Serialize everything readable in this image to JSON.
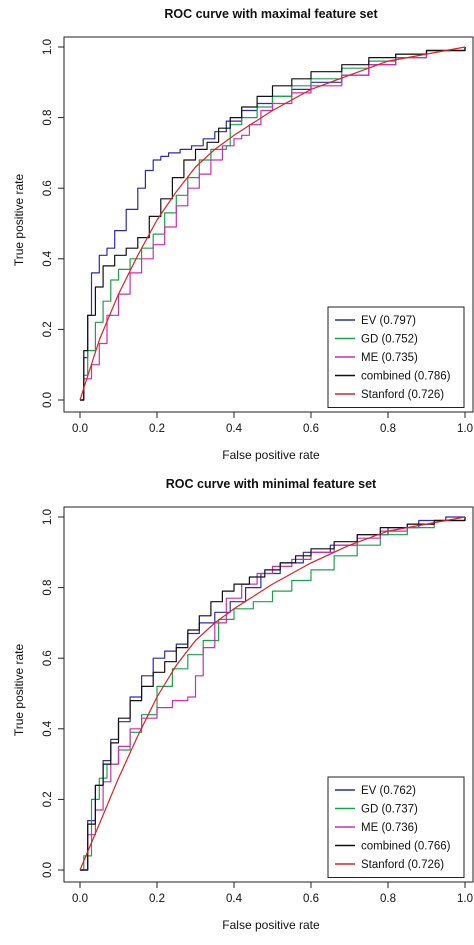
{
  "chart_data": [
    {
      "type": "line",
      "title": "ROC curve with maximal feature set",
      "xlabel": "False positive rate",
      "ylabel": "True positive rate",
      "xlim": [
        0,
        1
      ],
      "ylim": [
        0,
        1
      ],
      "xticks": [
        "0.0",
        "0.2",
        "0.4",
        "0.6",
        "0.8",
        "1.0"
      ],
      "yticks": [
        "0.0",
        "0.2",
        "0.4",
        "0.6",
        "0.8",
        "1.0"
      ],
      "grid": false,
      "legend_position": "bottom-right",
      "series": [
        {
          "name": "EV (0.797)",
          "color": "#2b2bb0",
          "x": [
            0,
            0.01,
            0.02,
            0.03,
            0.05,
            0.07,
            0.09,
            0.12,
            0.15,
            0.17,
            0.19,
            0.21,
            0.23,
            0.26,
            0.29,
            0.32,
            0.35,
            0.38,
            0.42,
            0.46,
            0.5,
            0.55,
            0.6,
            0.68,
            0.75,
            0.82,
            0.9,
            1.0
          ],
          "y": [
            0,
            0.12,
            0.24,
            0.36,
            0.41,
            0.43,
            0.48,
            0.54,
            0.6,
            0.65,
            0.68,
            0.69,
            0.7,
            0.71,
            0.72,
            0.74,
            0.76,
            0.79,
            0.82,
            0.84,
            0.86,
            0.88,
            0.9,
            0.92,
            0.95,
            0.97,
            0.99,
            1.0
          ]
        },
        {
          "name": "GD (0.752)",
          "color": "#1aa34a",
          "x": [
            0,
            0.01,
            0.02,
            0.04,
            0.06,
            0.08,
            0.1,
            0.13,
            0.16,
            0.19,
            0.22,
            0.25,
            0.28,
            0.31,
            0.34,
            0.38,
            0.39,
            0.42,
            0.46,
            0.5,
            0.55,
            0.6,
            0.68,
            0.75,
            0.82,
            0.9,
            1.0
          ],
          "y": [
            0,
            0.07,
            0.14,
            0.22,
            0.28,
            0.34,
            0.37,
            0.4,
            0.43,
            0.47,
            0.53,
            0.58,
            0.63,
            0.68,
            0.71,
            0.72,
            0.78,
            0.8,
            0.83,
            0.86,
            0.89,
            0.91,
            0.94,
            0.96,
            0.98,
            0.99,
            1.0
          ]
        },
        {
          "name": "ME (0.735)",
          "color": "#cc2fb0",
          "x": [
            0,
            0.01,
            0.03,
            0.05,
            0.07,
            0.1,
            0.13,
            0.16,
            0.19,
            0.22,
            0.25,
            0.28,
            0.31,
            0.34,
            0.37,
            0.4,
            0.42,
            0.44,
            0.47,
            0.5,
            0.55,
            0.6,
            0.68,
            0.75,
            0.82,
            0.9,
            1.0
          ],
          "y": [
            0,
            0.06,
            0.1,
            0.16,
            0.24,
            0.3,
            0.36,
            0.4,
            0.44,
            0.49,
            0.55,
            0.6,
            0.64,
            0.68,
            0.72,
            0.74,
            0.75,
            0.78,
            0.82,
            0.84,
            0.87,
            0.89,
            0.92,
            0.95,
            0.97,
            0.99,
            1.0
          ]
        },
        {
          "name": "combined (0.786)",
          "color": "#111111",
          "x": [
            0,
            0.01,
            0.02,
            0.04,
            0.06,
            0.09,
            0.12,
            0.15,
            0.18,
            0.21,
            0.24,
            0.27,
            0.3,
            0.33,
            0.36,
            0.39,
            0.42,
            0.46,
            0.5,
            0.55,
            0.6,
            0.68,
            0.75,
            0.82,
            0.9,
            1.0
          ],
          "y": [
            0,
            0.14,
            0.24,
            0.32,
            0.38,
            0.41,
            0.43,
            0.46,
            0.52,
            0.57,
            0.63,
            0.68,
            0.71,
            0.73,
            0.77,
            0.8,
            0.83,
            0.86,
            0.89,
            0.91,
            0.93,
            0.95,
            0.97,
            0.98,
            0.99,
            1.0
          ]
        },
        {
          "name": "Stanford (0.726)",
          "color": "#e02020",
          "x": [
            0,
            0.05,
            0.1,
            0.15,
            0.2,
            0.25,
            0.3,
            0.35,
            0.4,
            0.5,
            0.6,
            0.7,
            0.8,
            0.9,
            1.0
          ],
          "y": [
            0,
            0.17,
            0.3,
            0.41,
            0.51,
            0.59,
            0.66,
            0.71,
            0.75,
            0.82,
            0.88,
            0.92,
            0.96,
            0.98,
            1.0
          ]
        }
      ]
    },
    {
      "type": "line",
      "title": "ROC curve with minimal feature set",
      "xlabel": "False positive rate",
      "ylabel": "True positive rate",
      "xlim": [
        0,
        1
      ],
      "ylim": [
        0,
        1
      ],
      "xticks": [
        "0.0",
        "0.2",
        "0.4",
        "0.6",
        "0.8",
        "1.0"
      ],
      "yticks": [
        "0.0",
        "0.2",
        "0.4",
        "0.6",
        "0.8",
        "1.0"
      ],
      "grid": false,
      "legend_position": "bottom-right",
      "series": [
        {
          "name": "EV (0.762)",
          "color": "#2b2bb0",
          "x": [
            0,
            0.02,
            0.04,
            0.06,
            0.08,
            0.1,
            0.13,
            0.16,
            0.19,
            0.22,
            0.25,
            0.28,
            0.31,
            0.35,
            0.39,
            0.43,
            0.47,
            0.52,
            0.58,
            0.65,
            0.72,
            0.8,
            0.88,
            0.95,
            1.0
          ],
          "y": [
            0,
            0.14,
            0.24,
            0.31,
            0.37,
            0.42,
            0.49,
            0.55,
            0.6,
            0.62,
            0.64,
            0.67,
            0.7,
            0.73,
            0.76,
            0.8,
            0.84,
            0.87,
            0.9,
            0.92,
            0.95,
            0.97,
            0.99,
            1.0,
            1.0
          ]
        },
        {
          "name": "GD (0.737)",
          "color": "#1aa34a",
          "x": [
            0,
            0.01,
            0.03,
            0.05,
            0.07,
            0.1,
            0.13,
            0.16,
            0.2,
            0.24,
            0.28,
            0.32,
            0.36,
            0.4,
            0.45,
            0.5,
            0.55,
            0.6,
            0.66,
            0.72,
            0.78,
            0.85,
            0.92,
            1.0
          ],
          "y": [
            0,
            0.04,
            0.2,
            0.26,
            0.3,
            0.34,
            0.39,
            0.44,
            0.52,
            0.57,
            0.61,
            0.65,
            0.71,
            0.74,
            0.76,
            0.79,
            0.82,
            0.85,
            0.89,
            0.92,
            0.95,
            0.97,
            0.99,
            1.0
          ]
        },
        {
          "name": "ME (0.736)",
          "color": "#cc2fb0",
          "x": [
            0,
            0.02,
            0.04,
            0.06,
            0.08,
            0.1,
            0.13,
            0.16,
            0.2,
            0.24,
            0.28,
            0.3,
            0.32,
            0.35,
            0.38,
            0.42,
            0.46,
            0.5,
            0.55,
            0.6,
            0.66,
            0.72,
            0.78,
            0.85,
            0.92,
            1.0
          ],
          "y": [
            0,
            0.1,
            0.17,
            0.25,
            0.3,
            0.35,
            0.4,
            0.43,
            0.46,
            0.48,
            0.49,
            0.55,
            0.63,
            0.7,
            0.77,
            0.81,
            0.84,
            0.86,
            0.88,
            0.9,
            0.92,
            0.94,
            0.96,
            0.98,
            0.99,
            1.0
          ]
        },
        {
          "name": "combined (0.766)",
          "color": "#111111",
          "x": [
            0,
            0.02,
            0.04,
            0.06,
            0.08,
            0.1,
            0.13,
            0.16,
            0.19,
            0.22,
            0.25,
            0.28,
            0.31,
            0.34,
            0.37,
            0.4,
            0.44,
            0.48,
            0.52,
            0.56,
            0.6,
            0.66,
            0.72,
            0.78,
            0.85,
            0.92,
            1.0
          ],
          "y": [
            0,
            0.13,
            0.24,
            0.3,
            0.36,
            0.43,
            0.48,
            0.52,
            0.56,
            0.59,
            0.63,
            0.68,
            0.72,
            0.76,
            0.79,
            0.81,
            0.83,
            0.85,
            0.87,
            0.89,
            0.91,
            0.93,
            0.95,
            0.97,
            0.98,
            0.99,
            1.0
          ]
        },
        {
          "name": "Stanford (0.726)",
          "color": "#e02020",
          "x": [
            0,
            0.05,
            0.1,
            0.15,
            0.2,
            0.25,
            0.3,
            0.35,
            0.4,
            0.5,
            0.6,
            0.7,
            0.8,
            0.9,
            1.0
          ],
          "y": [
            0,
            0.13,
            0.26,
            0.38,
            0.49,
            0.58,
            0.65,
            0.7,
            0.74,
            0.81,
            0.87,
            0.92,
            0.96,
            0.98,
            1.0
          ]
        }
      ]
    }
  ]
}
